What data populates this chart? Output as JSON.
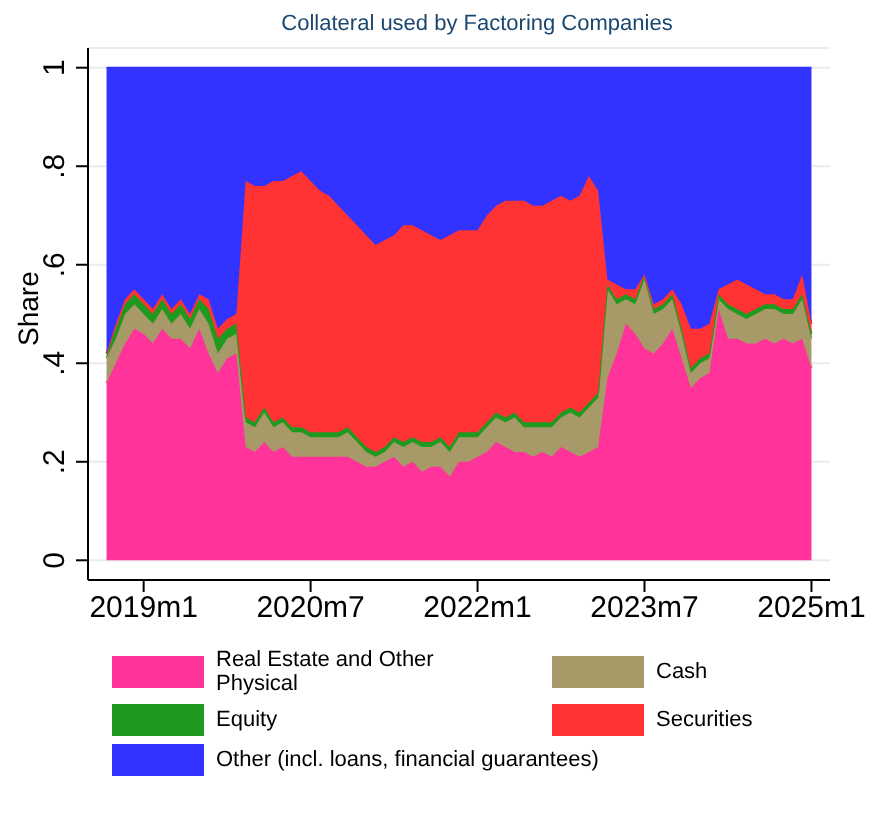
{
  "chart_data": {
    "type": "area",
    "stacked": true,
    "title": "Collateral used by Factoring Companies",
    "ylabel": "Share",
    "x": [
      "2018-09",
      "2018-10",
      "2018-11",
      "2018-12",
      "2019-01",
      "2019-02",
      "2019-03",
      "2019-04",
      "2019-05",
      "2019-06",
      "2019-07",
      "2019-08",
      "2019-09",
      "2019-10",
      "2019-11",
      "2019-12",
      "2020-01",
      "2020-02",
      "2020-03",
      "2020-04",
      "2020-05",
      "2020-06",
      "2020-07",
      "2020-08",
      "2020-09",
      "2020-10",
      "2020-11",
      "2020-12",
      "2021-01",
      "2021-02",
      "2021-03",
      "2021-04",
      "2021-05",
      "2021-06",
      "2021-07",
      "2021-08",
      "2021-09",
      "2021-10",
      "2021-11",
      "2021-12",
      "2022-01",
      "2022-02",
      "2022-03",
      "2022-04",
      "2022-05",
      "2022-06",
      "2022-07",
      "2022-08",
      "2022-09",
      "2022-10",
      "2022-11",
      "2022-12",
      "2023-01",
      "2023-02",
      "2023-03",
      "2023-04",
      "2023-05",
      "2023-06",
      "2023-07",
      "2023-08",
      "2023-09",
      "2023-10",
      "2023-11",
      "2023-12",
      "2024-01",
      "2024-02",
      "2024-03",
      "2024-04",
      "2024-05",
      "2024-06",
      "2024-07",
      "2024-08",
      "2024-09",
      "2024-10",
      "2024-11",
      "2024-12",
      "2025-01"
    ],
    "series": [
      {
        "name": "Real Estate and Other Physical",
        "color": "#ff3399",
        "values": [
          0.36,
          0.4,
          0.44,
          0.47,
          0.46,
          0.44,
          0.47,
          0.45,
          0.45,
          0.43,
          0.47,
          0.42,
          0.38,
          0.41,
          0.42,
          0.23,
          0.22,
          0.24,
          0.22,
          0.23,
          0.21,
          0.21,
          0.21,
          0.21,
          0.21,
          0.21,
          0.21,
          0.2,
          0.19,
          0.19,
          0.2,
          0.21,
          0.19,
          0.2,
          0.18,
          0.19,
          0.19,
          0.17,
          0.2,
          0.2,
          0.21,
          0.22,
          0.24,
          0.23,
          0.22,
          0.22,
          0.21,
          0.22,
          0.21,
          0.23,
          0.22,
          0.21,
          0.22,
          0.23,
          0.37,
          0.42,
          0.48,
          0.46,
          0.43,
          0.42,
          0.44,
          0.47,
          0.41,
          0.35,
          0.37,
          0.38,
          0.51,
          0.45,
          0.45,
          0.44,
          0.44,
          0.45,
          0.44,
          0.45,
          0.44,
          0.45,
          0.39
        ]
      },
      {
        "name": "Cash",
        "color": "#a89968",
        "values": [
          0.05,
          0.05,
          0.06,
          0.05,
          0.04,
          0.04,
          0.04,
          0.03,
          0.05,
          0.04,
          0.04,
          0.06,
          0.04,
          0.04,
          0.04,
          0.05,
          0.05,
          0.06,
          0.05,
          0.05,
          0.05,
          0.05,
          0.04,
          0.04,
          0.04,
          0.04,
          0.05,
          0.04,
          0.03,
          0.02,
          0.02,
          0.03,
          0.04,
          0.04,
          0.05,
          0.04,
          0.05,
          0.05,
          0.05,
          0.05,
          0.04,
          0.05,
          0.05,
          0.05,
          0.07,
          0.05,
          0.06,
          0.05,
          0.06,
          0.06,
          0.08,
          0.08,
          0.09,
          0.1,
          0.18,
          0.1,
          0.05,
          0.06,
          0.14,
          0.08,
          0.07,
          0.06,
          0.05,
          0.03,
          0.03,
          0.03,
          0.02,
          0.06,
          0.05,
          0.05,
          0.06,
          0.06,
          0.07,
          0.05,
          0.06,
          0.08,
          0.06
        ]
      },
      {
        "name": "Equity",
        "color": "#1f9a1f",
        "values": [
          0.01,
          0.02,
          0.02,
          0.02,
          0.02,
          0.02,
          0.02,
          0.02,
          0.02,
          0.02,
          0.02,
          0.03,
          0.03,
          0.02,
          0.02,
          0.01,
          0.01,
          0.01,
          0.01,
          0.01,
          0.01,
          0.01,
          0.01,
          0.01,
          0.01,
          0.01,
          0.01,
          0.01,
          0.01,
          0.01,
          0.01,
          0.01,
          0.01,
          0.01,
          0.01,
          0.01,
          0.01,
          0.01,
          0.01,
          0.01,
          0.01,
          0.01,
          0.01,
          0.01,
          0.01,
          0.01,
          0.01,
          0.01,
          0.01,
          0.01,
          0.01,
          0.01,
          0.01,
          0.01,
          0.01,
          0.01,
          0.01,
          0.01,
          0.01,
          0.01,
          0.01,
          0.01,
          0.01,
          0.01,
          0.01,
          0.01,
          0.01,
          0.01,
          0.01,
          0.01,
          0.01,
          0.01,
          0.01,
          0.01,
          0.01,
          0.01,
          0.01
        ]
      },
      {
        "name": "Securities",
        "color": "#ff3333",
        "values": [
          0.0,
          0.01,
          0.01,
          0.01,
          0.01,
          0.01,
          0.01,
          0.01,
          0.01,
          0.01,
          0.01,
          0.02,
          0.02,
          0.02,
          0.02,
          0.48,
          0.48,
          0.45,
          0.49,
          0.48,
          0.51,
          0.52,
          0.51,
          0.49,
          0.48,
          0.46,
          0.43,
          0.43,
          0.43,
          0.42,
          0.42,
          0.41,
          0.44,
          0.43,
          0.43,
          0.42,
          0.4,
          0.43,
          0.41,
          0.41,
          0.41,
          0.42,
          0.42,
          0.44,
          0.43,
          0.45,
          0.44,
          0.44,
          0.45,
          0.44,
          0.42,
          0.44,
          0.46,
          0.41,
          0.01,
          0.03,
          0.01,
          0.02,
          0.0,
          0.01,
          0.01,
          0.01,
          0.05,
          0.08,
          0.06,
          0.06,
          0.01,
          0.04,
          0.06,
          0.06,
          0.04,
          0.02,
          0.02,
          0.02,
          0.02,
          0.04,
          0.02
        ]
      },
      {
        "name": "Other (incl. loans, financial guarantees)",
        "color": "#3333ff",
        "values": [
          0.58,
          0.52,
          0.47,
          0.45,
          0.47,
          0.49,
          0.46,
          0.49,
          0.47,
          0.5,
          0.46,
          0.47,
          0.53,
          0.51,
          0.5,
          0.23,
          0.24,
          0.24,
          0.23,
          0.23,
          0.22,
          0.21,
          0.23,
          0.25,
          0.26,
          0.28,
          0.3,
          0.32,
          0.34,
          0.36,
          0.35,
          0.34,
          0.32,
          0.32,
          0.33,
          0.34,
          0.35,
          0.34,
          0.33,
          0.33,
          0.33,
          0.3,
          0.28,
          0.27,
          0.27,
          0.27,
          0.28,
          0.28,
          0.27,
          0.26,
          0.27,
          0.26,
          0.22,
          0.25,
          0.43,
          0.44,
          0.45,
          0.45,
          0.42,
          0.48,
          0.47,
          0.45,
          0.48,
          0.53,
          0.53,
          0.52,
          0.45,
          0.44,
          0.43,
          0.44,
          0.45,
          0.46,
          0.46,
          0.47,
          0.47,
          0.42,
          0.52
        ]
      }
    ],
    "xlim": [
      "2018-07",
      "2025-03"
    ],
    "xticks": [
      {
        "value": "2019-01",
        "label": "2019m1"
      },
      {
        "value": "2020-07",
        "label": "2020m7"
      },
      {
        "value": "2022-01",
        "label": "2022m1"
      },
      {
        "value": "2023-07",
        "label": "2023m7"
      },
      {
        "value": "2025-01",
        "label": "2025m1"
      }
    ],
    "ylim": [
      -0.04,
      1.04
    ],
    "yticks": [
      0,
      {
        "value": 0.2,
        "label": ".2"
      },
      {
        "value": 0.4,
        "label": ".4"
      },
      {
        "value": 0.6,
        "label": ".6"
      },
      {
        "value": 0.8,
        "label": ".8"
      },
      1
    ],
    "grid": "y",
    "legend": "bottom"
  }
}
